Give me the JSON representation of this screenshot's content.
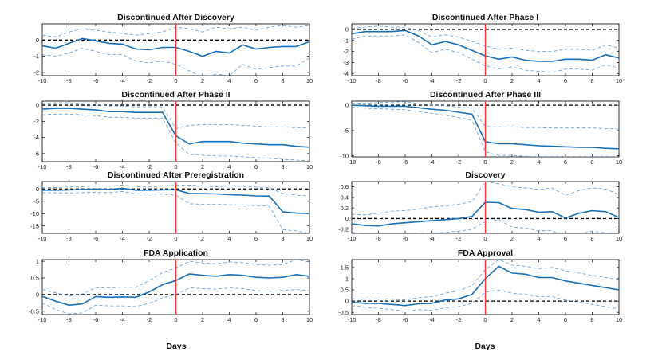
{
  "figure": {
    "xlabel": "Days",
    "colors": {
      "mean": "#1a6fb5",
      "band": "#5b9bd5",
      "zero": "#000000",
      "event": "#ff3333",
      "axis": "#000000"
    }
  },
  "chart_data": [
    {
      "type": "line",
      "title": "Discontinued After Discovery",
      "x": [
        -10,
        -9,
        -8,
        -7,
        -6,
        -5,
        -4,
        -3,
        -2,
        -1,
        0,
        1,
        2,
        3,
        4,
        5,
        6,
        7,
        8,
        9,
        10
      ],
      "xlim": [
        -10,
        10
      ],
      "xticks": [
        -10,
        -8,
        -6,
        -4,
        -2,
        0,
        2,
        4,
        6,
        8,
        10
      ],
      "xtick_labels": [
        "-10",
        "-8",
        "-6",
        "-4",
        "-2",
        "0",
        "2",
        "4",
        "6",
        "8",
        "10"
      ],
      "ylim": [
        -2.2,
        1.0
      ],
      "yticks": [
        0,
        -1,
        -2
      ],
      "ytick_labels": [
        "0",
        "-1",
        "-2"
      ],
      "series": [
        {
          "name": "mean",
          "values": [
            -0.35,
            -0.5,
            -0.2,
            0.1,
            -0.05,
            -0.2,
            -0.25,
            -0.55,
            -0.6,
            -0.45,
            -0.45,
            -0.7,
            -1.0,
            -0.7,
            -0.8,
            -0.3,
            -0.55,
            -0.45,
            -0.4,
            -0.4,
            -0.1
          ]
        },
        {
          "name": "upper",
          "values": [
            0.3,
            0.2,
            0.5,
            0.7,
            0.6,
            0.5,
            0.4,
            0.3,
            0.4,
            0.5,
            0.8,
            0.7,
            0.5,
            0.8,
            0.7,
            0.8,
            0.6,
            0.8,
            0.9,
            0.8,
            0.9
          ]
        },
        {
          "name": "lower",
          "values": [
            -0.9,
            -1.0,
            -0.8,
            -0.5,
            -0.7,
            -0.9,
            -0.9,
            -1.3,
            -1.4,
            -1.3,
            -1.5,
            -1.9,
            -2.3,
            -2.1,
            -2.2,
            -1.5,
            -1.8,
            -1.7,
            -1.6,
            -1.6,
            -1.1
          ]
        }
      ]
    },
    {
      "type": "line",
      "title": "Discontinued After Phase I",
      "x": [
        -10,
        -9,
        -8,
        -7,
        -6,
        -5,
        -4,
        -3,
        -2,
        -1,
        0,
        1,
        2,
        3,
        4,
        5,
        6,
        7,
        8,
        9,
        10
      ],
      "xlim": [
        -10,
        10
      ],
      "xticks": [
        -10,
        -8,
        -6,
        -4,
        -2,
        0,
        2,
        4,
        6,
        8,
        10
      ],
      "xtick_labels": [
        "-10",
        "-8",
        "-6",
        "-4",
        "-2",
        "0",
        "2",
        "4",
        "6",
        "8",
        "10"
      ],
      "ylim": [
        -4.2,
        0.5
      ],
      "yticks": [
        0,
        -1,
        -2,
        -3,
        -4
      ],
      "ytick_labels": [
        "0",
        "-1",
        "-2",
        "-3",
        "-4"
      ],
      "series": [
        {
          "name": "mean",
          "values": [
            -0.4,
            -0.2,
            -0.2,
            -0.2,
            -0.1,
            -0.6,
            -1.4,
            -1.1,
            -1.4,
            -1.9,
            -2.4,
            -2.7,
            -2.5,
            -2.8,
            -2.9,
            -2.9,
            -2.7,
            -2.7,
            -2.8,
            -2.3,
            -2.6
          ]
        },
        {
          "name": "upper",
          "values": [
            0.1,
            0.2,
            0.3,
            0.2,
            0.2,
            -0.1,
            -0.7,
            -0.5,
            -0.7,
            -1.1,
            -1.5,
            -1.8,
            -1.7,
            -1.9,
            -2.0,
            -2.0,
            -1.8,
            -1.8,
            -1.9,
            -1.4,
            -1.7
          ]
        },
        {
          "name": "lower",
          "values": [
            -0.9,
            -0.6,
            -0.6,
            -0.6,
            -0.5,
            -1.2,
            -2.1,
            -1.8,
            -2.1,
            -2.7,
            -3.3,
            -3.6,
            -3.4,
            -3.7,
            -3.8,
            -3.9,
            -3.6,
            -3.6,
            -3.7,
            -3.2,
            -3.5
          ]
        }
      ]
    },
    {
      "type": "line",
      "title": "Discontinued After Phase II",
      "x": [
        -10,
        -9,
        -8,
        -7,
        -6,
        -5,
        -4,
        -3,
        -2,
        -1,
        0,
        1,
        2,
        3,
        4,
        5,
        6,
        7,
        8,
        9,
        10
      ],
      "xlim": [
        -10,
        10
      ],
      "xticks": [
        -10,
        -8,
        -6,
        -4,
        -2,
        0,
        2,
        4,
        6,
        8,
        10
      ],
      "xtick_labels": [
        "-10",
        "-8",
        "-6",
        "-4",
        "-2",
        "0",
        "2",
        "4",
        "6",
        "8",
        "10"
      ],
      "ylim": [
        -7,
        0.5
      ],
      "yticks": [
        0,
        -2,
        -4,
        -6
      ],
      "ytick_labels": [
        "0",
        "-2",
        "-4",
        "-6"
      ],
      "series": [
        {
          "name": "mean",
          "values": [
            -0.5,
            -0.4,
            -0.4,
            -0.5,
            -0.6,
            -0.8,
            -0.8,
            -0.9,
            -0.9,
            -0.9,
            -3.8,
            -4.8,
            -4.5,
            -4.5,
            -4.5,
            -4.7,
            -4.8,
            -4.9,
            -4.9,
            -5.1,
            -5.2
          ]
        },
        {
          "name": "upper",
          "values": [
            0.2,
            0.3,
            0.3,
            0.2,
            0.1,
            -0.1,
            -0.1,
            -0.2,
            -0.2,
            -0.2,
            -2.9,
            -2.5,
            -2.4,
            -2.4,
            -2.4,
            -2.5,
            -2.6,
            -2.7,
            -2.7,
            -2.8,
            -2.8
          ]
        },
        {
          "name": "lower",
          "values": [
            -1.2,
            -1.1,
            -1.1,
            -1.2,
            -1.3,
            -1.5,
            -1.5,
            -1.6,
            -1.6,
            -1.6,
            -4.7,
            -6.1,
            -6.2,
            -6.3,
            -6.3,
            -6.4,
            -6.5,
            -6.6,
            -6.7,
            -6.8,
            -6.9
          ]
        }
      ]
    },
    {
      "type": "line",
      "title": "Discontinued After Phase III",
      "x": [
        -10,
        -9,
        -8,
        -7,
        -6,
        -5,
        -4,
        -3,
        -2,
        -1,
        0,
        1,
        2,
        3,
        4,
        5,
        6,
        7,
        8,
        9,
        10
      ],
      "xlim": [
        -10,
        10
      ],
      "xticks": [
        -10,
        -8,
        -6,
        -4,
        -2,
        0,
        2,
        4,
        6,
        8,
        10
      ],
      "xtick_labels": [
        "-10",
        "-8",
        "-6",
        "-4",
        "-2",
        "0",
        "2",
        "4",
        "6",
        "8",
        "10"
      ],
      "ylim": [
        -10.2,
        0.8
      ],
      "yticks": [
        0,
        -5,
        -10
      ],
      "ytick_labels": [
        "0",
        "-5",
        "-10"
      ],
      "series": [
        {
          "name": "mean",
          "values": [
            0,
            -0.1,
            -0.2,
            -0.2,
            -0.2,
            -0.5,
            -0.8,
            -1.0,
            -1.4,
            -1.8,
            -7.2,
            -7.6,
            -7.6,
            -7.8,
            -8.0,
            -8.1,
            -8.2,
            -8.3,
            -8.3,
            -8.5,
            -8.6
          ]
        },
        {
          "name": "upper",
          "values": [
            0.4,
            0.4,
            0.5,
            0.6,
            0.7,
            0.3,
            0.0,
            -0.1,
            -0.4,
            -0.6,
            -4.2,
            -4.3,
            -4.3,
            -4.4,
            -4.4,
            -4.5,
            -4.5,
            -4.5,
            -4.5,
            -4.6,
            -4.7
          ]
        },
        {
          "name": "lower",
          "values": [
            -0.4,
            -0.6,
            -0.7,
            -0.8,
            -0.9,
            -1.3,
            -1.6,
            -2.0,
            -2.4,
            -3.0,
            -9.2,
            -9.9,
            -9.9,
            -10.1,
            -10.2,
            -10.2,
            -10.2,
            -10.2,
            -10.2,
            -10.2,
            -10.2
          ]
        }
      ]
    },
    {
      "type": "line",
      "title": "Discontinued After Preregistration",
      "x": [
        -10,
        -9,
        -8,
        -7,
        -6,
        -5,
        -4,
        -3,
        -2,
        -1,
        0,
        1,
        2,
        3,
        4,
        5,
        6,
        7,
        8,
        9,
        10
      ],
      "xlim": [
        -10,
        10
      ],
      "xticks": [
        -10,
        -8,
        -6,
        -4,
        -2,
        0,
        2,
        4,
        6,
        8,
        10
      ],
      "xtick_labels": [
        "-10",
        "-8",
        "-6",
        "-4",
        "-2",
        "0",
        "2",
        "4",
        "6",
        "8",
        "10"
      ],
      "ylim": [
        -18,
        3
      ],
      "yticks": [
        0,
        -5,
        -10,
        -15
      ],
      "ytick_labels": [
        "0",
        "-5",
        "-10",
        "-15"
      ],
      "series": [
        {
          "name": "mean",
          "values": [
            -0.5,
            -0.5,
            -0.4,
            -0.2,
            0,
            -0.2,
            0.3,
            -0.5,
            -0.5,
            -0.4,
            -0.3,
            -1.8,
            -1.9,
            -2.0,
            -2.3,
            -2.5,
            -2.8,
            -2.9,
            -9.3,
            -9.8,
            -10.0
          ]
        },
        {
          "name": "upper",
          "values": [
            0.5,
            0.6,
            0.8,
            1.0,
            1.3,
            1.1,
            1.6,
            1.0,
            0.9,
            1.2,
            1.5,
            1.6,
            1.3,
            0.9,
            1.3,
            1.1,
            0.8,
            0.5,
            -1.9,
            -2.5,
            -2.9
          ]
        },
        {
          "name": "lower",
          "values": [
            -1.5,
            -1.6,
            -1.6,
            -1.5,
            -1.3,
            -1.5,
            -1.0,
            -2.0,
            -2.0,
            -2.1,
            -2.5,
            -6.0,
            -6.2,
            -6.2,
            -6.4,
            -6.5,
            -6.7,
            -7.0,
            -16.5,
            -17.0,
            -18.0
          ]
        }
      ]
    },
    {
      "type": "line",
      "title": "Discovery",
      "x": [
        -10,
        -9,
        -8,
        -7,
        -6,
        -5,
        -4,
        -3,
        -2,
        -1,
        0,
        1,
        2,
        3,
        4,
        5,
        6,
        7,
        8,
        9,
        10
      ],
      "xlim": [
        -10,
        10
      ],
      "xticks": [
        -10,
        -8,
        -6,
        -4,
        -2,
        0,
        2,
        4,
        6,
        8,
        10
      ],
      "xtick_labels": [
        "-10",
        "-8",
        "-6",
        "-4",
        "-2",
        "0",
        "2",
        "4",
        "6",
        "8",
        "10"
      ],
      "ylim": [
        -0.28,
        0.7
      ],
      "yticks": [
        0.6,
        0.4,
        0.2,
        0,
        -0.2
      ],
      "ytick_labels": [
        "0.6",
        "0.4",
        "0.2",
        "0",
        "-0.2"
      ],
      "series": [
        {
          "name": "mean",
          "values": [
            -0.1,
            -0.13,
            -0.14,
            -0.1,
            -0.08,
            -0.06,
            -0.04,
            -0.02,
            0,
            0.04,
            0.31,
            0.3,
            0.19,
            0.17,
            0.12,
            0.13,
            0.01,
            0.1,
            0.15,
            0.13,
            0.02
          ]
        },
        {
          "name": "upper",
          "values": [
            0.08,
            0.07,
            0.1,
            0.14,
            0.15,
            0.18,
            0.22,
            0.24,
            0.27,
            0.32,
            0.7,
            0.66,
            0.6,
            0.58,
            0.55,
            0.58,
            0.44,
            0.53,
            0.58,
            0.56,
            0.45
          ]
        },
        {
          "name": "lower",
          "values": [
            -0.26,
            -0.3,
            -0.34,
            -0.3,
            -0.3,
            -0.28,
            -0.28,
            -0.26,
            -0.24,
            -0.2,
            -0.06,
            -0.02,
            -0.16,
            -0.18,
            -0.23,
            -0.23,
            -0.36,
            -0.3,
            -0.24,
            -0.27,
            -0.38
          ]
        }
      ]
    },
    {
      "type": "line",
      "title": "FDA Application",
      "x": [
        -10,
        -9,
        -8,
        -7,
        -6,
        -5,
        -4,
        -3,
        -2,
        -1,
        0,
        1,
        2,
        3,
        4,
        5,
        6,
        7,
        8,
        9,
        10
      ],
      "xlim": [
        -10,
        10
      ],
      "xticks": [
        -10,
        -8,
        -6,
        -4,
        -2,
        0,
        2,
        4,
        6,
        8,
        10
      ],
      "xtick_labels": [
        "-10",
        "-8",
        "-6",
        "-4",
        "-2",
        "0",
        "2",
        "4",
        "6",
        "8",
        "10"
      ],
      "ylim": [
        -0.6,
        1.05
      ],
      "yticks": [
        1,
        0.5,
        0,
        -0.5
      ],
      "ytick_labels": [
        "1",
        "0.5",
        "0",
        "-0.5"
      ],
      "series": [
        {
          "name": "mean",
          "values": [
            -0.05,
            -0.2,
            -0.32,
            -0.28,
            -0.06,
            -0.08,
            -0.07,
            -0.08,
            0.08,
            0.3,
            0.42,
            0.62,
            0.58,
            0.55,
            0.6,
            0.58,
            0.52,
            0.5,
            0.52,
            0.6,
            0.55
          ]
        },
        {
          "name": "upper",
          "values": [
            0.15,
            0.05,
            -0.05,
            0.02,
            0.2,
            0.2,
            0.22,
            0.22,
            0.42,
            0.66,
            0.8,
            1.0,
            0.95,
            0.92,
            0.98,
            0.96,
            0.9,
            0.88,
            0.9,
            1.05,
            0.98
          ]
        },
        {
          "name": "lower",
          "values": [
            -0.25,
            -0.45,
            -0.58,
            -0.55,
            -0.32,
            -0.34,
            -0.34,
            -0.36,
            -0.26,
            -0.1,
            0,
            0.2,
            0.18,
            0.16,
            0.2,
            0.18,
            0.12,
            0.1,
            0.12,
            0.15,
            0.12
          ]
        }
      ]
    },
    {
      "type": "line",
      "title": "FDA Approval",
      "x": [
        -10,
        -9,
        -8,
        -7,
        -6,
        -5,
        -4,
        -3,
        -2,
        -1,
        0,
        1,
        2,
        3,
        4,
        5,
        6,
        7,
        8,
        9,
        10
      ],
      "xlim": [
        -10,
        10
      ],
      "xticks": [
        -10,
        -8,
        -6,
        -4,
        -2,
        0,
        2,
        4,
        6,
        8,
        10
      ],
      "xtick_labels": [
        "-10",
        "-8",
        "-6",
        "-4",
        "-2",
        "0",
        "2",
        "4",
        "6",
        "8",
        "10"
      ],
      "ylim": [
        -0.6,
        1.85
      ],
      "yticks": [
        1.5,
        1,
        0.5,
        0,
        -0.5
      ],
      "ytick_labels": [
        "1.5",
        "1",
        "0.5",
        "0",
        "-0.5"
      ],
      "series": [
        {
          "name": "mean",
          "values": [
            -0.05,
            -0.1,
            -0.1,
            -0.15,
            -0.2,
            -0.12,
            -0.1,
            0.05,
            0.1,
            0.3,
            1.0,
            1.55,
            1.25,
            1.2,
            1.05,
            1.05,
            0.9,
            0.8,
            0.7,
            0.6,
            0.5
          ]
        },
        {
          "name": "upper",
          "values": [
            0.1,
            0.08,
            0.1,
            0.08,
            0.05,
            0.15,
            0.2,
            0.35,
            0.45,
            0.7,
            1.4,
            1.85,
            1.6,
            1.55,
            1.45,
            1.5,
            1.35,
            1.25,
            1.15,
            1.05,
            0.95
          ]
        },
        {
          "name": "lower",
          "values": [
            -0.2,
            -0.28,
            -0.32,
            -0.38,
            -0.45,
            -0.38,
            -0.4,
            -0.3,
            -0.25,
            -0.1,
            0.4,
            0.5,
            0.35,
            0.3,
            0.2,
            0.2,
            0.05,
            -0.05,
            -0.15,
            -0.25,
            -0.35
          ]
        }
      ]
    }
  ]
}
